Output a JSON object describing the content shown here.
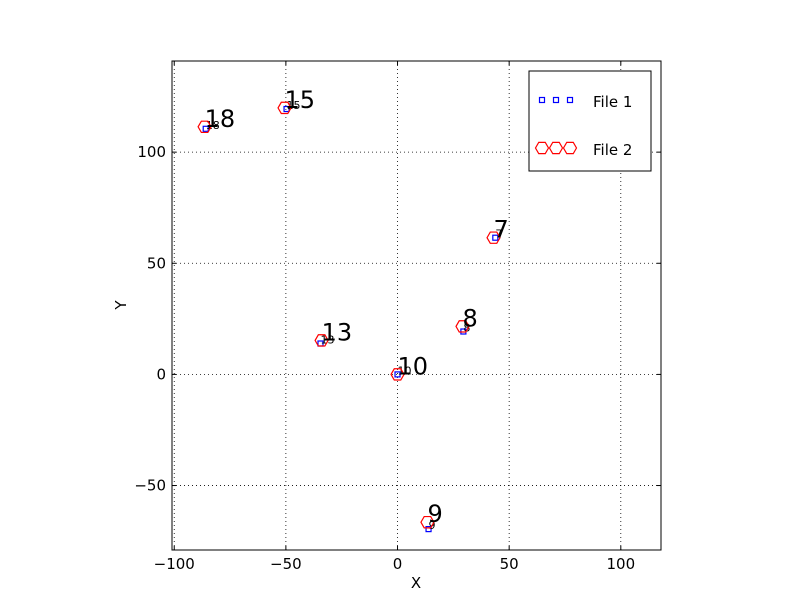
{
  "chart_data": {
    "type": "scatter",
    "x_label": "X",
    "y_label": "Y",
    "xlim": [
      -101,
      118
    ],
    "ylim": [
      -79,
      141
    ],
    "xticks": [
      {
        "value": -100,
        "label": "−100"
      },
      {
        "value": -50,
        "label": "−50"
      },
      0,
      50,
      100
    ],
    "yticks": [
      {
        "value": -50,
        "label": "−50"
      },
      0,
      50,
      100
    ],
    "grid": true,
    "legend": "upper right",
    "series": [
      {
        "name": "File 1",
        "color": "#0000ff",
        "marker": "square",
        "x": [
          -85.9,
          -49.7,
          43.8,
          29.5,
          -34.5,
          0,
          13.9
        ],
        "values": [
          110.5,
          119.4,
          61.5,
          19.3,
          13.9,
          0,
          -69.6
        ],
        "labels": [
          "18",
          "15",
          "7",
          "8",
          "13",
          "10",
          "9"
        ]
      },
      {
        "name": "File 2",
        "color": "#ff0000",
        "marker": "hexagon",
        "x": [
          -86.4,
          -50.6,
          43,
          29.1,
          -34,
          0,
          13.4
        ],
        "values": [
          111.4,
          119.9,
          61.5,
          21.6,
          15.3,
          0,
          -66.5
        ],
        "labels": [
          "18",
          "15",
          "7",
          "8",
          "13",
          "10",
          "9"
        ]
      }
    ]
  }
}
